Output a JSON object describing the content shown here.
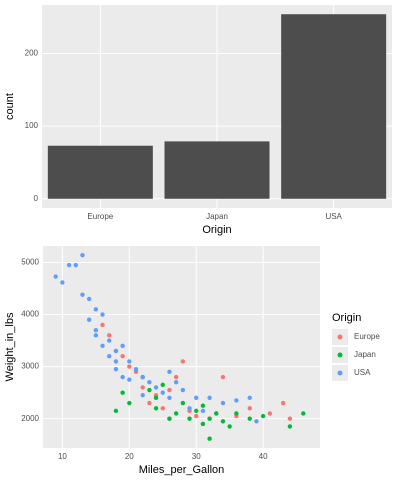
{
  "chart_data": [
    {
      "type": "bar",
      "x_label": "Origin",
      "y_label": "count",
      "categories": [
        "Europe",
        "Japan",
        "USA"
      ],
      "values": [
        73,
        79,
        254
      ],
      "color": "#4d4d4d",
      "ylim": [
        -12.7,
        266.7
      ],
      "yticks": [
        0,
        100,
        200
      ],
      "grid": true
    },
    {
      "type": "scatter",
      "x_label": "Miles_per_Gallon",
      "y_label": "Weight_in_lbs",
      "legend_title": "Origin",
      "xlim": [
        7.1,
        48.5
      ],
      "xticks": [
        10,
        20,
        30,
        40
      ],
      "ylim": [
        1437,
        5316
      ],
      "yticks": [
        2000,
        3000,
        4000,
        5000
      ],
      "grid": true,
      "legend": "right",
      "series": [
        {
          "name": "Europe",
          "color": "#F8766D",
          "x": [
            16,
            17,
            18,
            19,
            20,
            21,
            22,
            23,
            24,
            25,
            26,
            26,
            27,
            28,
            29,
            30,
            31,
            32,
            33,
            34,
            36,
            38,
            41,
            43,
            44
          ],
          "y": [
            3800,
            3600,
            3300,
            3200,
            3000,
            2900,
            2600,
            2300,
            2450,
            2200,
            2000,
            2550,
            2800,
            3100,
            2150,
            2050,
            1900,
            2000,
            2100,
            2800,
            2050,
            2200,
            2100,
            2300,
            2000
          ]
        },
        {
          "name": "Japan",
          "color": "#00BA38",
          "x": [
            18,
            19,
            20,
            22,
            23,
            24,
            24,
            25,
            26,
            27,
            28,
            29,
            30,
            31,
            31,
            32,
            33,
            34,
            35,
            36,
            38,
            40,
            44,
            46,
            32
          ],
          "y": [
            2150,
            2500,
            2300,
            2800,
            2550,
            2400,
            2200,
            2650,
            2000,
            2100,
            2300,
            2000,
            2150,
            1900,
            2250,
            2000,
            2100,
            1950,
            1850,
            2100,
            2000,
            2050,
            1850,
            2100,
            1615
          ]
        },
        {
          "name": "USA",
          "color": "#619CFF",
          "x": [
            9,
            10,
            11,
            12,
            13,
            13,
            14,
            14,
            15,
            15,
            15,
            16,
            16,
            17,
            17,
            18,
            18,
            18,
            19,
            19,
            20,
            20,
            21,
            22,
            22,
            23,
            24,
            25,
            26,
            27,
            28,
            29,
            30,
            31,
            32,
            34,
            36,
            38,
            39,
            26
          ],
          "y": [
            4730,
            4615,
            4950,
            4950,
            5140,
            4380,
            4300,
            3900,
            4100,
            3700,
            3600,
            4000,
            3400,
            3500,
            3200,
            3300,
            3100,
            2950,
            3400,
            2800,
            3100,
            2750,
            2950,
            2800,
            2450,
            2700,
            2600,
            2500,
            2400,
            2700,
            2550,
            2200,
            2400,
            2150,
            2400,
            2300,
            2350,
            2400,
            1950,
            2900
          ]
        }
      ]
    }
  ]
}
